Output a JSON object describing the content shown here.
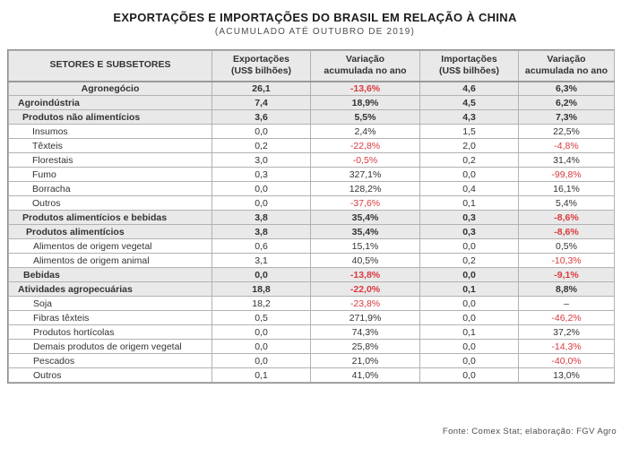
{
  "title": "EXPORTAÇÕES E IMPORTAÇÕES DO BRASIL EM RELAÇÃO À CHINA",
  "subtitle": "(ACUMULADO ATÉ OUTUBRO DE 2019)",
  "footer": "Fonte: Comex Stat; elaboração: FGV Agro",
  "colors": {
    "negative_value": "#d93a3e",
    "shaded_row_bg": "#e9e9e9",
    "header_bg": "#e9e9e9",
    "inner_border": "#b2b2b2",
    "outer_border": "#8f8f8f",
    "text": "#333333"
  },
  "table": {
    "headers": [
      "SETORES E SUBSETORES",
      "Exportações\n(US$ bilhões)",
      "Variação\nacumulada no ano",
      "Importações\n(US$ bilhões)",
      "Variação\nacumulada no ano"
    ],
    "rows": [
      {
        "label": "Agronegócio",
        "indent": 0,
        "center": true,
        "shaded": true,
        "cells": [
          {
            "t": "26,1"
          },
          {
            "t": "-13,6%",
            "neg": true
          },
          {
            "t": "4,6"
          },
          {
            "t": "6,3%"
          }
        ]
      },
      {
        "label": "Agroindústria",
        "indent": 10,
        "shaded": true,
        "cells": [
          {
            "t": "7,4"
          },
          {
            "t": "18,9%"
          },
          {
            "t": "4,5"
          },
          {
            "t": "6,2%"
          }
        ]
      },
      {
        "label": "Produtos não alimentícios",
        "indent": 15,
        "shaded": true,
        "cells": [
          {
            "t": "3,6"
          },
          {
            "t": "5,5%"
          },
          {
            "t": "4,3"
          },
          {
            "t": "7,3%"
          }
        ]
      },
      {
        "label": "Insumos",
        "indent": 26,
        "cells": [
          {
            "t": "0,0"
          },
          {
            "t": "2,4%"
          },
          {
            "t": "1,5"
          },
          {
            "t": "22,5%"
          }
        ]
      },
      {
        "label": "Têxteis",
        "indent": 26,
        "cells": [
          {
            "t": "0,2"
          },
          {
            "t": "-22,8%",
            "neg": true
          },
          {
            "t": "2,0"
          },
          {
            "t": "-4,8%",
            "neg": true
          }
        ]
      },
      {
        "label": "Florestais",
        "indent": 26,
        "cells": [
          {
            "t": "3,0"
          },
          {
            "t": "-0,5%",
            "neg": true
          },
          {
            "t": "0,2"
          },
          {
            "t": "31,4%"
          }
        ]
      },
      {
        "label": "Fumo",
        "indent": 26,
        "cells": [
          {
            "t": "0,3"
          },
          {
            "t": "327,1%"
          },
          {
            "t": "0,0"
          },
          {
            "t": "-99,8%",
            "neg": true
          }
        ]
      },
      {
        "label": "Borracha",
        "indent": 26,
        "cells": [
          {
            "t": "0,0"
          },
          {
            "t": "128,2%"
          },
          {
            "t": "0,4"
          },
          {
            "t": "16,1%"
          }
        ]
      },
      {
        "label": "Outros",
        "indent": 26,
        "cells": [
          {
            "t": "0,0"
          },
          {
            "t": "-37,6%",
            "neg": true
          },
          {
            "t": "0,1"
          },
          {
            "t": "5,4%"
          }
        ]
      },
      {
        "label": "Produtos alimentícios e bebidas",
        "indent": 15,
        "shaded": true,
        "cells": [
          {
            "t": "3,8"
          },
          {
            "t": "35,4%"
          },
          {
            "t": "0,3"
          },
          {
            "t": "-8,6%",
            "neg": true
          }
        ]
      },
      {
        "label": "Produtos alimentícios",
        "indent": 19,
        "shaded": true,
        "cells": [
          {
            "t": "3,8"
          },
          {
            "t": "35,4%"
          },
          {
            "t": "0,3"
          },
          {
            "t": "-8,6%",
            "neg": true
          }
        ]
      },
      {
        "label": "Alimentos de origem vegetal",
        "indent": 27,
        "cells": [
          {
            "t": "0,6"
          },
          {
            "t": "15,1%"
          },
          {
            "t": "0,0"
          },
          {
            "t": "0,5%"
          }
        ]
      },
      {
        "label": "Alimentos de origem animal",
        "indent": 27,
        "cells": [
          {
            "t": "3,1"
          },
          {
            "t": "40,5%"
          },
          {
            "t": "0,2"
          },
          {
            "t": "-10,3%",
            "neg": true
          }
        ]
      },
      {
        "label": "Bebidas",
        "indent": 16,
        "shaded": true,
        "cells": [
          {
            "t": "0,0"
          },
          {
            "t": "-13,8%",
            "neg": true
          },
          {
            "t": "0,0"
          },
          {
            "t": "-9,1%",
            "neg": true
          }
        ]
      },
      {
        "label": "Atividades agropecuárias",
        "indent": 10,
        "shaded": true,
        "cells": [
          {
            "t": "18,8"
          },
          {
            "t": "-22,0%",
            "neg": true
          },
          {
            "t": "0,1"
          },
          {
            "t": "8,8%"
          }
        ]
      },
      {
        "label": "Soja",
        "indent": 27,
        "cells": [
          {
            "t": "18,2"
          },
          {
            "t": "-23,8%",
            "neg": true
          },
          {
            "t": "0,0"
          },
          {
            "t": "–"
          }
        ]
      },
      {
        "label": "Fibras têxteis",
        "indent": 27,
        "cells": [
          {
            "t": "0,5"
          },
          {
            "t": "271,9%"
          },
          {
            "t": "0,0"
          },
          {
            "t": "-46,2%",
            "neg": true
          }
        ]
      },
      {
        "label": "Produtos hortícolas",
        "indent": 27,
        "cells": [
          {
            "t": "0,0"
          },
          {
            "t": "74,3%"
          },
          {
            "t": "0,1"
          },
          {
            "t": "37,2%"
          }
        ]
      },
      {
        "label": "Demais produtos de origem vegetal",
        "indent": 27,
        "cells": [
          {
            "t": "0,0"
          },
          {
            "t": "25,8%"
          },
          {
            "t": "0,0"
          },
          {
            "t": "-14,3%",
            "neg": true
          }
        ]
      },
      {
        "label": "Pescados",
        "indent": 27,
        "cells": [
          {
            "t": "0,0"
          },
          {
            "t": "21,0%"
          },
          {
            "t": "0,0"
          },
          {
            "t": "-40,0%",
            "neg": true
          }
        ]
      },
      {
        "label": "Outros",
        "indent": 27,
        "cells": [
          {
            "t": "0,1"
          },
          {
            "t": "41,0%"
          },
          {
            "t": "0,0"
          },
          {
            "t": "13,0%"
          }
        ]
      }
    ]
  },
  "chart_data": {
    "type": "table",
    "title": "EXPORTAÇÕES E IMPORTAÇÕES DO BRASIL EM RELAÇÃO À CHINA",
    "subtitle": "(ACUMULADO ATÉ OUTUBRO DE 2019)",
    "columns": [
      "Setores e subsetores",
      "Exportações (US$ bilhões)",
      "Variação acumulada no ano (%)",
      "Importações (US$ bilhões)",
      "Variação acumulada no ano (%)"
    ],
    "source": "Fonte: Comex Stat; elaboração: FGV Agro",
    "rows": [
      {
        "setor": "Agronegócio",
        "exportacoes": 26.1,
        "var_exportacoes_pct": -13.6,
        "importacoes": 4.6,
        "var_importacoes_pct": 6.3
      },
      {
        "setor": "Agroindústria",
        "exportacoes": 7.4,
        "var_exportacoes_pct": 18.9,
        "importacoes": 4.5,
        "var_importacoes_pct": 6.2
      },
      {
        "setor": "Produtos não alimentícios",
        "exportacoes": 3.6,
        "var_exportacoes_pct": 5.5,
        "importacoes": 4.3,
        "var_importacoes_pct": 7.3
      },
      {
        "setor": "Insumos",
        "exportacoes": 0.0,
        "var_exportacoes_pct": 2.4,
        "importacoes": 1.5,
        "var_importacoes_pct": 22.5
      },
      {
        "setor": "Têxteis",
        "exportacoes": 0.2,
        "var_exportacoes_pct": -22.8,
        "importacoes": 2.0,
        "var_importacoes_pct": -4.8
      },
      {
        "setor": "Florestais",
        "exportacoes": 3.0,
        "var_exportacoes_pct": -0.5,
        "importacoes": 0.2,
        "var_importacoes_pct": 31.4
      },
      {
        "setor": "Fumo",
        "exportacoes": 0.3,
        "var_exportacoes_pct": 327.1,
        "importacoes": 0.0,
        "var_importacoes_pct": -99.8
      },
      {
        "setor": "Borracha",
        "exportacoes": 0.0,
        "var_exportacoes_pct": 128.2,
        "importacoes": 0.4,
        "var_importacoes_pct": 16.1
      },
      {
        "setor": "Outros",
        "exportacoes": 0.0,
        "var_exportacoes_pct": -37.6,
        "importacoes": 0.1,
        "var_importacoes_pct": 5.4
      },
      {
        "setor": "Produtos alimentícios e bebidas",
        "exportacoes": 3.8,
        "var_exportacoes_pct": 35.4,
        "importacoes": 0.3,
        "var_importacoes_pct": -8.6
      },
      {
        "setor": "Produtos alimentícios",
        "exportacoes": 3.8,
        "var_exportacoes_pct": 35.4,
        "importacoes": 0.3,
        "var_importacoes_pct": -8.6
      },
      {
        "setor": "Alimentos de origem vegetal",
        "exportacoes": 0.6,
        "var_exportacoes_pct": 15.1,
        "importacoes": 0.0,
        "var_importacoes_pct": 0.5
      },
      {
        "setor": "Alimentos de origem animal",
        "exportacoes": 3.1,
        "var_exportacoes_pct": 40.5,
        "importacoes": 0.2,
        "var_importacoes_pct": -10.3
      },
      {
        "setor": "Bebidas",
        "exportacoes": 0.0,
        "var_exportacoes_pct": -13.8,
        "importacoes": 0.0,
        "var_importacoes_pct": -9.1
      },
      {
        "setor": "Atividades agropecuárias",
        "exportacoes": 18.8,
        "var_exportacoes_pct": -22.0,
        "importacoes": 0.1,
        "var_importacoes_pct": 8.8
      },
      {
        "setor": "Soja",
        "exportacoes": 18.2,
        "var_exportacoes_pct": -23.8,
        "importacoes": 0.0,
        "var_importacoes_pct": null
      },
      {
        "setor": "Fibras têxteis",
        "exportacoes": 0.5,
        "var_exportacoes_pct": 271.9,
        "importacoes": 0.0,
        "var_importacoes_pct": -46.2
      },
      {
        "setor": "Produtos hortícolas",
        "exportacoes": 0.0,
        "var_exportacoes_pct": 74.3,
        "importacoes": 0.1,
        "var_importacoes_pct": 37.2
      },
      {
        "setor": "Demais produtos de origem vegetal",
        "exportacoes": 0.0,
        "var_exportacoes_pct": 25.8,
        "importacoes": 0.0,
        "var_importacoes_pct": -14.3
      },
      {
        "setor": "Pescados",
        "exportacoes": 0.0,
        "var_exportacoes_pct": 21.0,
        "importacoes": 0.0,
        "var_importacoes_pct": -40.0
      },
      {
        "setor": "Outros",
        "exportacoes": 0.1,
        "var_exportacoes_pct": 41.0,
        "importacoes": 0.0,
        "var_importacoes_pct": 13.0
      }
    ]
  }
}
